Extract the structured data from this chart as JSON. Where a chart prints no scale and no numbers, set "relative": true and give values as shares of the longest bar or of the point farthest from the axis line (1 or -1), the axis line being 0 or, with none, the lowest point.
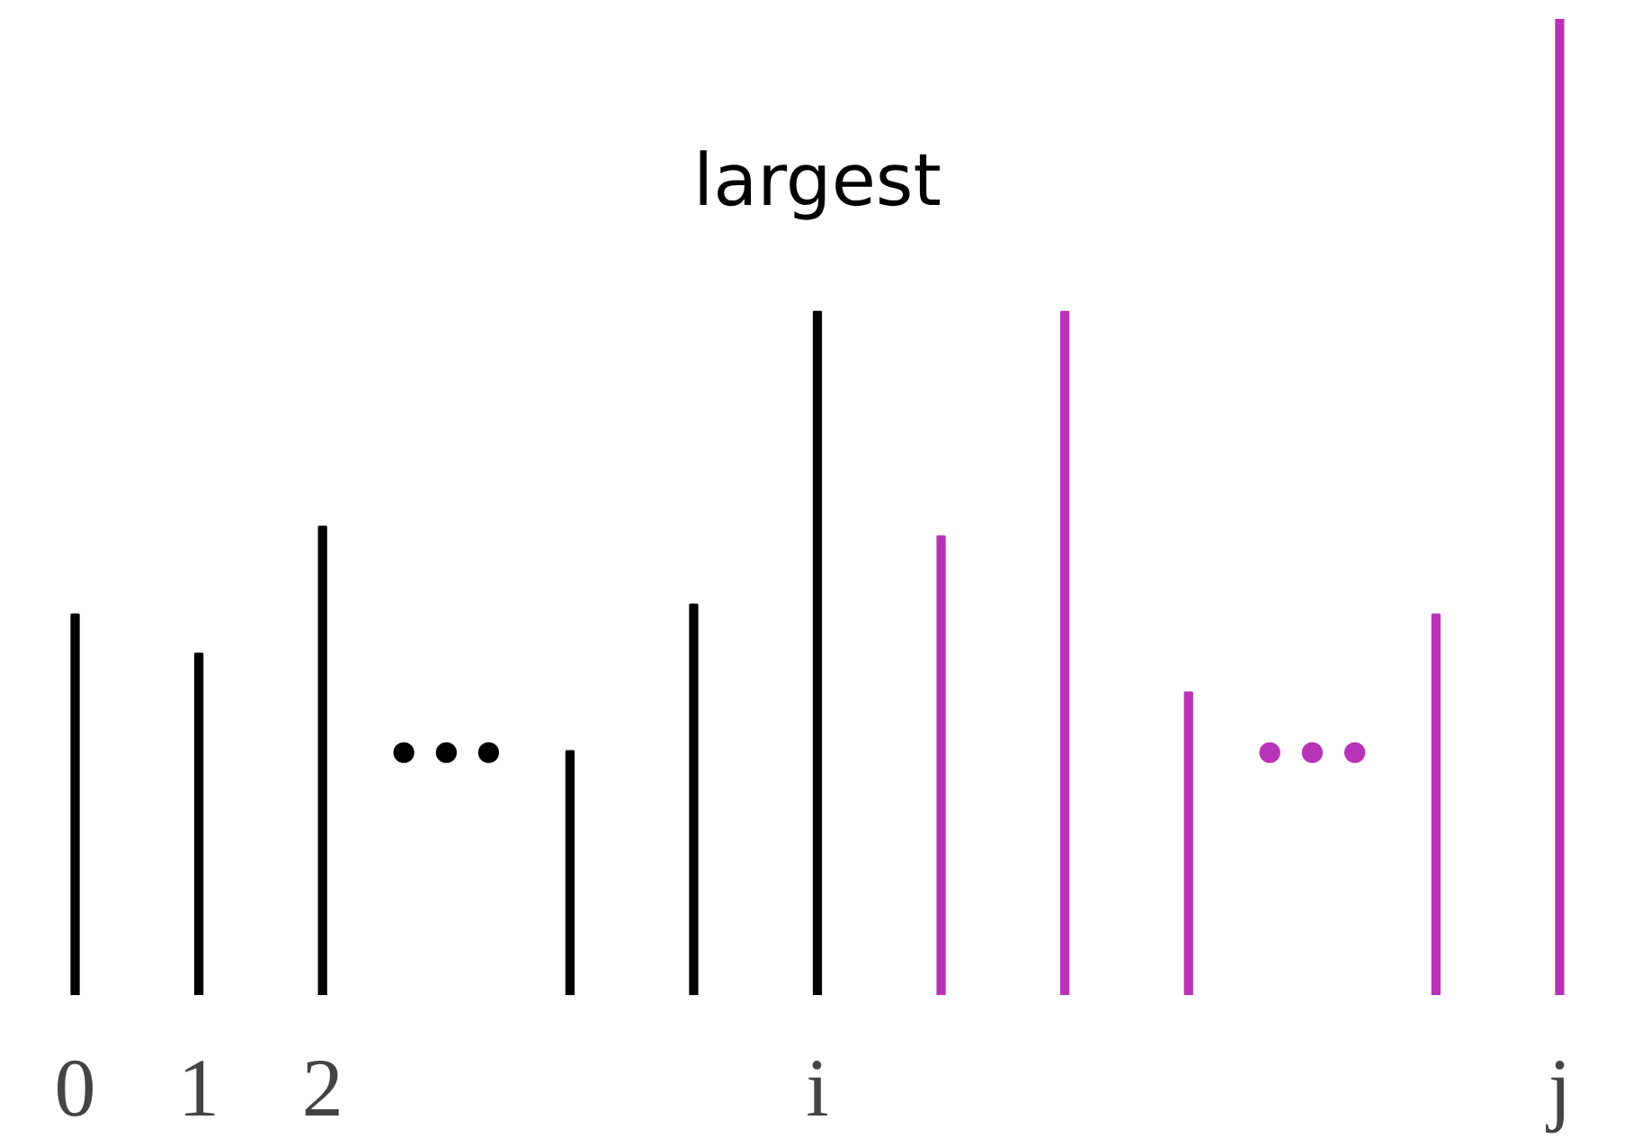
{
  "chart_data": {
    "type": "bar",
    "relative": true,
    "categories": [
      "0",
      "1",
      "2",
      null,
      null,
      null,
      "i",
      null,
      null,
      null,
      null,
      null,
      "j"
    ],
    "values": [
      0.39,
      0.35,
      0.48,
      null,
      0.25,
      0.4,
      0.7,
      0.47,
      0.7,
      0.31,
      null,
      0.39,
      1.0
    ],
    "colors": [
      "#000000",
      "#000000",
      "#000000",
      "#000000",
      "#000000",
      "#000000",
      "#000000",
      "#b833b8",
      "#b833b8",
      "#b833b8",
      "#b833b8",
      "#b833b8",
      "#b833b8"
    ],
    "annotations": [
      "largest",
      "•••",
      "•••"
    ],
    "grid": false
  }
}
